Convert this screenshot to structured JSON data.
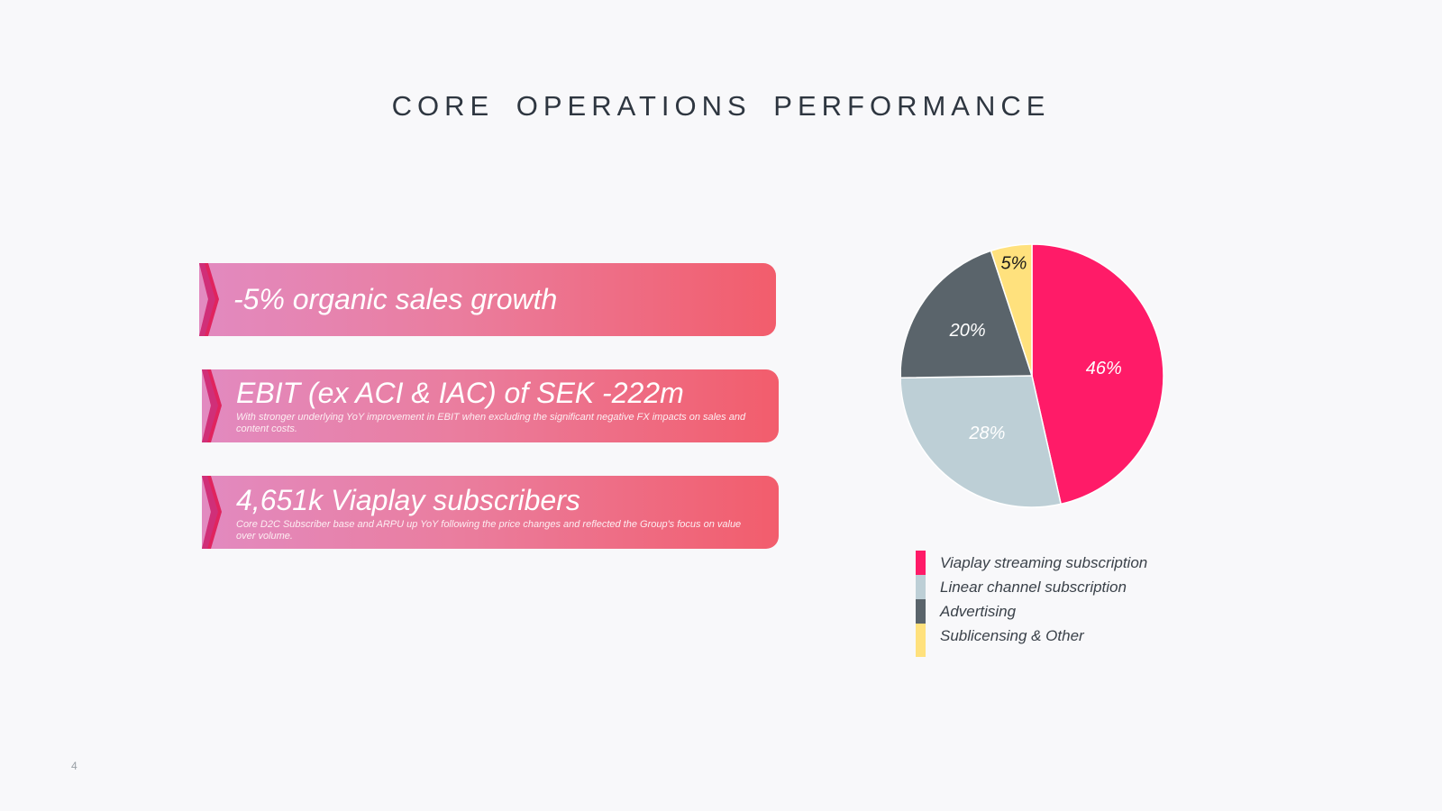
{
  "title": "CORE OPERATIONS  PERFORMANCE",
  "banners": [
    {
      "main": "-5% organic sales growth",
      "sub": ""
    },
    {
      "main": "EBIT (ex ACI & IAC) of SEK -222m",
      "sub": "With stronger underlying YoY improvement in EBIT when excluding the significant negative FX impacts on sales and content costs."
    },
    {
      "main": "4,651k Viaplay subscribers",
      "sub": "Core D2C Subscriber base and ARPU up YoY following the price changes and reflected the Group's focus on value over volume."
    }
  ],
  "chart_data": {
    "type": "pie",
    "title": "",
    "categories": [
      "Viaplay streaming subscription",
      "Linear channel subscription",
      "Advertising",
      "Sublicensing & Other"
    ],
    "values": [
      46,
      28,
      20,
      5
    ],
    "labels": [
      "46%",
      "28%",
      "20%",
      "5%"
    ],
    "colors": [
      "#ff1b68",
      "#bdcfd6",
      "#5a646b",
      "#ffe17d"
    ],
    "label_colors": [
      "#ffffff",
      "#ffffff",
      "#ffffff",
      "#1a1a1a"
    ],
    "legend_position": "bottom"
  },
  "page_number": "4",
  "colors": {
    "banner_start": "#e28ac0",
    "banner_end": "#f25d6c",
    "chevron_a": "#e0245e",
    "chevron_b": "#c03a8a"
  }
}
